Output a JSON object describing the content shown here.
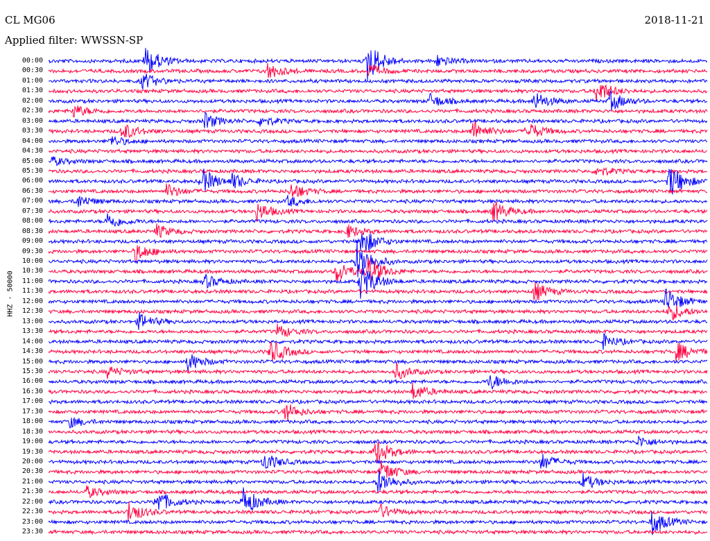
{
  "header": {
    "station": "CL MG06",
    "date": "2018-11-21",
    "filter": "Applied filter: WWSSN-SP"
  },
  "axis": {
    "ylabel": "HHZ - 50000"
  },
  "trace_colors": [
    "#0000ff",
    "#ff0040"
  ],
  "time_labels": [
    "00:00",
    "00:30",
    "01:00",
    "01:30",
    "02:00",
    "02:30",
    "03:00",
    "03:30",
    "04:00",
    "04:30",
    "05:00",
    "05:30",
    "06:00",
    "06:30",
    "07:00",
    "07:30",
    "08:00",
    "08:30",
    "09:00",
    "09:30",
    "10:00",
    "10:30",
    "11:00",
    "11:30",
    "12:00",
    "12:30",
    "13:00",
    "13:30",
    "14:00",
    "14:30",
    "15:00",
    "15:30",
    "16:00",
    "16:30",
    "17:00",
    "17:30",
    "18:00",
    "18:30",
    "19:00",
    "19:30",
    "20:00",
    "20:30",
    "21:00",
    "21:30",
    "22:00",
    "22:30",
    "23:00",
    "23:30"
  ]
}
